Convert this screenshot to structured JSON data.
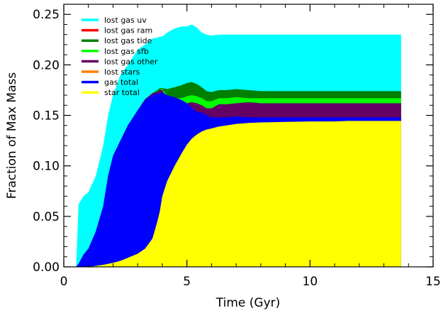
{
  "chart_data": {
    "type": "area",
    "title": "",
    "xlabel": "Time (Gyr)",
    "ylabel": "Fraction of Max Mass",
    "xlim": [
      0,
      15
    ],
    "ylim": [
      0,
      0.26
    ],
    "x_ticks": [
      0,
      5,
      10,
      15
    ],
    "y_ticks": [
      0.0,
      0.05,
      0.1,
      0.15,
      0.2,
      0.25
    ],
    "x_tick_labels": [
      "0",
      "5",
      "10",
      "15"
    ],
    "y_tick_labels": [
      "0.00",
      "0.05",
      "0.10",
      "0.15",
      "0.20",
      "0.25"
    ],
    "legend_position": "top-left",
    "grid": false,
    "legend": [
      {
        "name": "lost gas uv",
        "color": "#00ffff"
      },
      {
        "name": "lost gas ram",
        "color": "#ff0000"
      },
      {
        "name": "lost gas tide",
        "color": "#008000"
      },
      {
        "name": "lost gas sfb",
        "color": "#00ff00"
      },
      {
        "name": "lost gas other",
        "color": "#660066"
      },
      {
        "name": "lost stars",
        "color": "#ff7f00"
      },
      {
        "name": "gas total",
        "color": "#0000ff"
      },
      {
        "name": "star total",
        "color": "#ffff00"
      }
    ],
    "x": [
      0.3,
      0.5,
      0.6,
      0.8,
      1.0,
      1.3,
      1.6,
      1.8,
      2.0,
      2.3,
      2.6,
      3.0,
      3.3,
      3.6,
      3.8,
      3.9,
      4.0,
      4.2,
      4.5,
      4.8,
      5.0,
      5.2,
      5.4,
      5.6,
      5.8,
      6.0,
      6.3,
      6.6,
      7.0,
      7.5,
      8.0,
      9.0,
      10.0,
      11.0,
      11.5,
      12.0,
      13.0,
      13.7
    ],
    "series": [
      {
        "name": "star total",
        "color": "#ffff00",
        "values": [
          0,
          0,
          0,
          0,
          0,
          0.001,
          0.002,
          0.003,
          0.004,
          0.006,
          0.009,
          0.013,
          0.018,
          0.028,
          0.045,
          0.055,
          0.07,
          0.085,
          0.1,
          0.113,
          0.121,
          0.127,
          0.131,
          0.134,
          0.136,
          0.137,
          0.139,
          0.14,
          0.1415,
          0.1425,
          0.143,
          0.1435,
          0.144,
          0.144,
          0.1445,
          0.1445,
          0.1445,
          0.1445
        ]
      },
      {
        "name": "gas total",
        "color": "#0000ff",
        "values": [
          0,
          0,
          0.003,
          0.012,
          0.018,
          0.035,
          0.06,
          0.09,
          0.11,
          0.125,
          0.14,
          0.155,
          0.165,
          0.17,
          0.172,
          0.172,
          0.173,
          0.17,
          0.168,
          0.165,
          0.162,
          0.158,
          0.153,
          0.153,
          0.15,
          0.148,
          0.148,
          0.148,
          0.149,
          0.148,
          0.148,
          0.148,
          0.148,
          0.148,
          0.148,
          0.148,
          0.148,
          0.148
        ]
      },
      {
        "name": "lost gas other",
        "color": "#660066",
        "values": [
          0,
          0,
          0.003,
          0.012,
          0.018,
          0.035,
          0.06,
          0.09,
          0.11,
          0.125,
          0.14,
          0.155,
          0.166,
          0.172,
          0.173,
          0.175,
          0.175,
          0.166,
          0.16,
          0.16,
          0.162,
          0.163,
          0.162,
          0.16,
          0.157,
          0.157,
          0.161,
          0.161,
          0.162,
          0.163,
          0.162,
          0.162,
          0.162,
          0.162,
          0.162,
          0.162,
          0.162,
          0.162
        ]
      },
      {
        "name": "lost gas sfb",
        "color": "#00ff00",
        "values": [
          0,
          0,
          0.003,
          0.012,
          0.018,
          0.035,
          0.06,
          0.09,
          0.11,
          0.125,
          0.14,
          0.155,
          0.166,
          0.172,
          0.173,
          0.175,
          0.176,
          0.17,
          0.167,
          0.167,
          0.169,
          0.17,
          0.169,
          0.167,
          0.164,
          0.164,
          0.167,
          0.167,
          0.168,
          0.167,
          0.167,
          0.167,
          0.167,
          0.167,
          0.167,
          0.167,
          0.167,
          0.167
        ]
      },
      {
        "name": "lost gas tide",
        "color": "#008000",
        "values": [
          0,
          0,
          0.003,
          0.012,
          0.018,
          0.035,
          0.06,
          0.09,
          0.11,
          0.125,
          0.14,
          0.155,
          0.166,
          0.172,
          0.175,
          0.177,
          0.177,
          0.176,
          0.178,
          0.18,
          0.182,
          0.183,
          0.181,
          0.178,
          0.174,
          0.173,
          0.175,
          0.175,
          0.176,
          0.175,
          0.174,
          0.174,
          0.174,
          0.174,
          0.174,
          0.174,
          0.174,
          0.174
        ]
      },
      {
        "name": "lost gas uv",
        "color": "#00ffff",
        "values": [
          0,
          0,
          0.062,
          0.07,
          0.074,
          0.09,
          0.12,
          0.15,
          0.17,
          0.19,
          0.2,
          0.215,
          0.22,
          0.226,
          0.227,
          0.228,
          0.228,
          0.232,
          0.236,
          0.238,
          0.238,
          0.24,
          0.237,
          0.232,
          0.23,
          0.229,
          0.23,
          0.23,
          0.23,
          0.23,
          0.23,
          0.23,
          0.23,
          0.23,
          0.23,
          0.23,
          0.23,
          0.23
        ]
      }
    ]
  }
}
